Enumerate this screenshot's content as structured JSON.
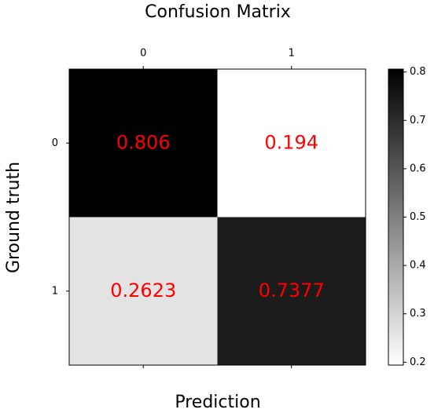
{
  "chart_data": {
    "type": "heatmap",
    "title": "Confusion Matrix",
    "xlabel": "Prediction",
    "ylabel": "Ground truth",
    "x_categories": [
      "0",
      "1"
    ],
    "y_categories": [
      "0",
      "1"
    ],
    "values": [
      [
        0.806,
        0.194
      ],
      [
        0.2623,
        0.7377
      ]
    ],
    "colormap": "Greys",
    "value_label_color": "#ff0000",
    "clim": [
      0.194,
      0.806
    ],
    "colorbar_ticks": [
      0.2,
      0.3,
      0.4,
      0.5,
      0.6,
      0.7,
      0.8
    ]
  }
}
